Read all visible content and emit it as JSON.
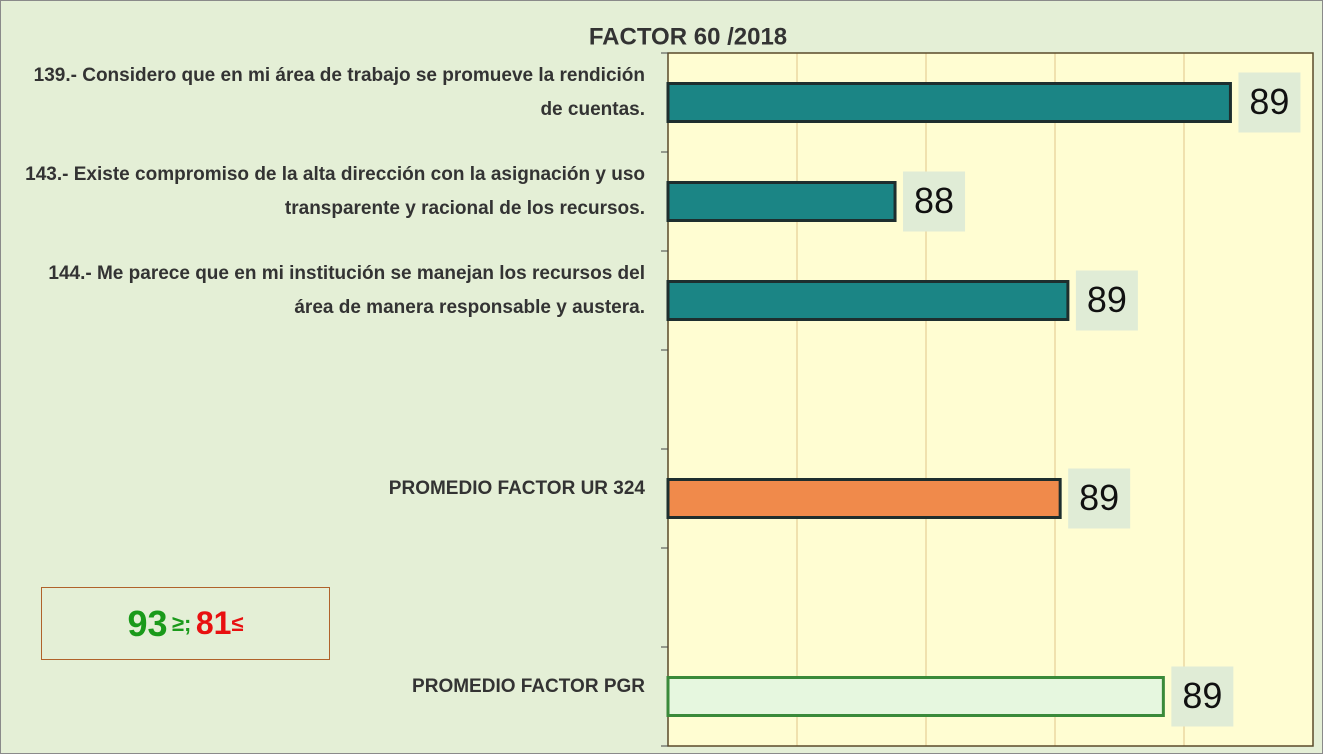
{
  "chart_data": {
    "type": "barh",
    "title": "FACTOR 60 /2018",
    "categories": [
      "139.- Considero que en mi área de trabajo se promueve la rendición de cuentas.",
      "143.- Existe compromiso de la alta dirección con la asignación y uso transparente y racional de los recursos.",
      "144.- Me parece que en mi institución se manejan los recursos del área de manera responsable y austera.",
      null,
      "PROMEDIO FACTOR UR 324",
      null,
      "PROMEDIO FACTOR PGR"
    ],
    "values": [
      89.18,
      87.88,
      88.55,
      null,
      88.52,
      null,
      88.92
    ],
    "value_labels": [
      "89",
      "88",
      "89",
      null,
      "89",
      null,
      "89"
    ],
    "colors": [
      "#1b8585",
      "#1b8585",
      "#1b8585",
      null,
      "#f08a4b",
      null,
      "#e6f7df"
    ],
    "xlim": [
      87,
      89.5
    ],
    "xticks": [
      87.5,
      88,
      88.5,
      89
    ],
    "grid": true,
    "annotation": {
      "green": "93",
      "green_symbol": "≥;",
      "red": "81",
      "red_symbol": "≤"
    }
  }
}
